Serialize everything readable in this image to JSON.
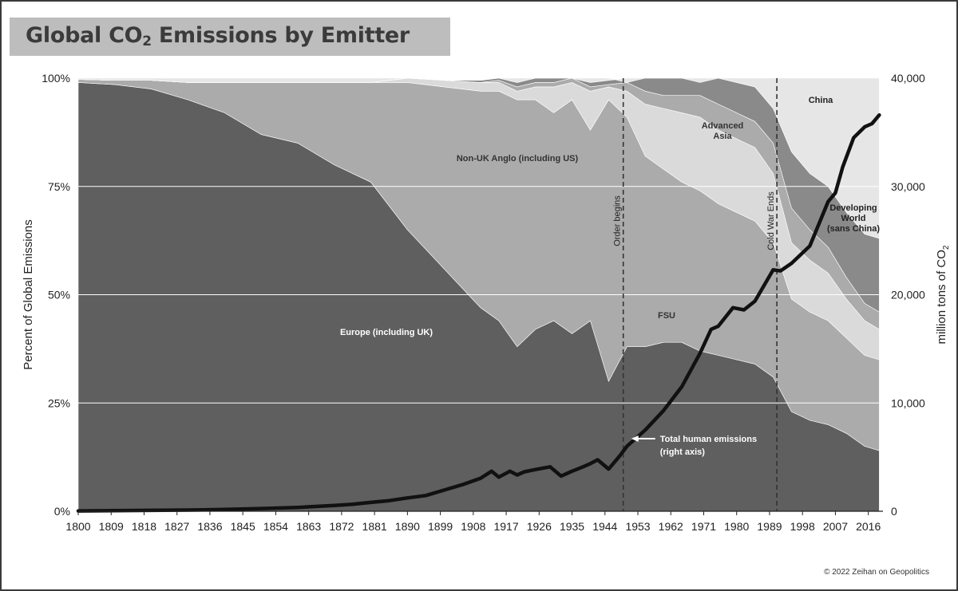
{
  "title": {
    "main": "Global CO",
    "sub": "2",
    "rest": " Emissions by Emitter"
  },
  "credit": "© 2022 Zeihan on Geopolitics",
  "colors": {
    "europe": "#5f5f5f",
    "non_uk_anglo": "#ababab",
    "fsu": "#dadada",
    "advanced_asia": "#ababab",
    "developing_world": "#8a8a8a",
    "china": "#e6e6e6",
    "line": "#111111",
    "event_line": "#333333"
  },
  "chart_data": {
    "type": "area",
    "stacked_percent": true,
    "title": "Global CO2 Emissions by Emitter",
    "xlabel": "",
    "ylabel_left": "Percent of Global Emissions",
    "ylabel_right_main": "million tons of CO",
    "ylabel_right_sub": "2",
    "xlim": [
      1800,
      2020
    ],
    "ylim_left": [
      0,
      100
    ],
    "ylim_right": [
      0,
      40000
    ],
    "grid": true,
    "x_ticks": [
      "1800",
      "1809",
      "1818",
      "1827",
      "1836",
      "1845",
      "1854",
      "1863",
      "1872",
      "1881",
      "1890",
      "1899",
      "1908",
      "1917",
      "1926",
      "1935",
      "1944",
      "1953",
      "1962",
      "1971",
      "1980",
      "1989",
      "1998",
      "2007",
      "2016"
    ],
    "y_ticks_left": [
      "0%",
      "25%",
      "50%",
      "75%",
      "100%"
    ],
    "y_ticks_right": [
      "0",
      "10,000",
      "20,000",
      "30,000",
      "40,000"
    ],
    "x": [
      1800,
      1810,
      1820,
      1830,
      1840,
      1850,
      1860,
      1870,
      1880,
      1890,
      1900,
      1910,
      1915,
      1920,
      1925,
      1930,
      1935,
      1940,
      1945,
      1950,
      1955,
      1960,
      1965,
      1970,
      1975,
      1980,
      1985,
      1990,
      1995,
      2000,
      2005,
      2010,
      2015,
      2019
    ],
    "series": [
      {
        "name": "Europe (including UK)",
        "label": "Europe (including UK)",
        "color_key": "europe",
        "values": [
          99,
          98.5,
          97.5,
          95,
          92,
          87,
          85,
          80,
          76,
          65,
          56,
          47,
          44,
          38,
          42,
          44,
          41,
          44,
          30,
          38,
          38,
          39,
          39,
          37,
          36,
          35,
          34,
          31,
          23,
          21,
          20,
          18,
          15,
          14
        ]
      },
      {
        "name": "Non-UK Anglo (including US)",
        "label": "Non-UK Anglo (including US)",
        "color_key": "non_uk_anglo",
        "values": [
          0.7,
          1,
          2,
          4,
          7,
          12,
          14,
          19,
          23,
          34,
          42,
          50,
          53,
          57,
          53,
          48,
          54,
          44,
          65,
          53,
          44,
          40,
          37,
          37,
          35,
          34,
          33,
          31,
          26,
          25,
          24,
          22,
          21,
          21
        ]
      },
      {
        "name": "FSU",
        "label": "FSU",
        "color_key": "fsu",
        "values": [
          0,
          0,
          0,
          0,
          0,
          0,
          0,
          0,
          0,
          1,
          1.5,
          2,
          2,
          2,
          3,
          6,
          4,
          9,
          3,
          6,
          12,
          14,
          16,
          17,
          17,
          17,
          17,
          16,
          13,
          12,
          11,
          9,
          8,
          7
        ]
      },
      {
        "name": "Advanced Asia",
        "label": "Advanced\nAsia",
        "color_key": "advanced_asia",
        "values": [
          0,
          0,
          0,
          0,
          0,
          0,
          0,
          0,
          0,
          0,
          0,
          0,
          0.5,
          1,
          1,
          1,
          1,
          1,
          0.5,
          2,
          3,
          3,
          4,
          5,
          6,
          6,
          6,
          7,
          8,
          7,
          6,
          5,
          4,
          4
        ]
      },
      {
        "name": "Developing World (sans China)",
        "label": "Developing\nWorld\n(sans China)",
        "color_key": "developing_world",
        "values": [
          0,
          0,
          0,
          0,
          0,
          0,
          0,
          0,
          0,
          0,
          0,
          0.5,
          0.5,
          1,
          1,
          1,
          1,
          1,
          1,
          2,
          3,
          4,
          4,
          5,
          6,
          7,
          8,
          8,
          13,
          13,
          14,
          15,
          16,
          17
        ]
      },
      {
        "name": "China",
        "label": "China",
        "color_key": "china",
        "values": [
          0.3,
          0.5,
          0.5,
          1,
          1,
          1,
          1,
          1,
          1,
          0,
          0,
          0,
          0,
          1,
          0,
          0,
          0,
          1,
          0.5,
          -1,
          0,
          0,
          0,
          -1,
          0,
          1,
          2,
          7,
          17,
          22,
          25,
          31,
          36,
          37
        ]
      }
    ],
    "total_emissions": {
      "name": "Total human emissions",
      "label_line1": "Total human emissions",
      "label_line2": "(right axis)",
      "unit": "million tons of CO2",
      "x": [
        1800,
        1810,
        1820,
        1830,
        1840,
        1850,
        1860,
        1870,
        1875,
        1880,
        1885,
        1890,
        1895,
        1900,
        1905,
        1910,
        1913,
        1915,
        1918,
        1920,
        1922,
        1925,
        1929,
        1932,
        1935,
        1938,
        1940,
        1942,
        1945,
        1948,
        1950,
        1955,
        1960,
        1965,
        1970,
        1973,
        1975,
        1979,
        1982,
        1985,
        1990,
        1992,
        1995,
        2000,
        2005,
        2007,
        2009,
        2012,
        2015,
        2017,
        2019
      ],
      "values": [
        30,
        50,
        80,
        110,
        160,
        250,
        350,
        530,
        650,
        820,
        980,
        1230,
        1450,
        1950,
        2450,
        3050,
        3700,
        3150,
        3700,
        3350,
        3650,
        3850,
        4100,
        3250,
        3700,
        4100,
        4400,
        4750,
        3900,
        5100,
        6000,
        7500,
        9300,
        11500,
        14600,
        16800,
        17100,
        18800,
        18600,
        19400,
        22300,
        22200,
        22900,
        24500,
        28600,
        29400,
        31800,
        34500,
        35500,
        35800,
        36600
      ]
    },
    "events": [
      {
        "year": 1949,
        "label": "Order begins"
      },
      {
        "year": 1991,
        "label": "Cold War Ends"
      }
    ]
  }
}
